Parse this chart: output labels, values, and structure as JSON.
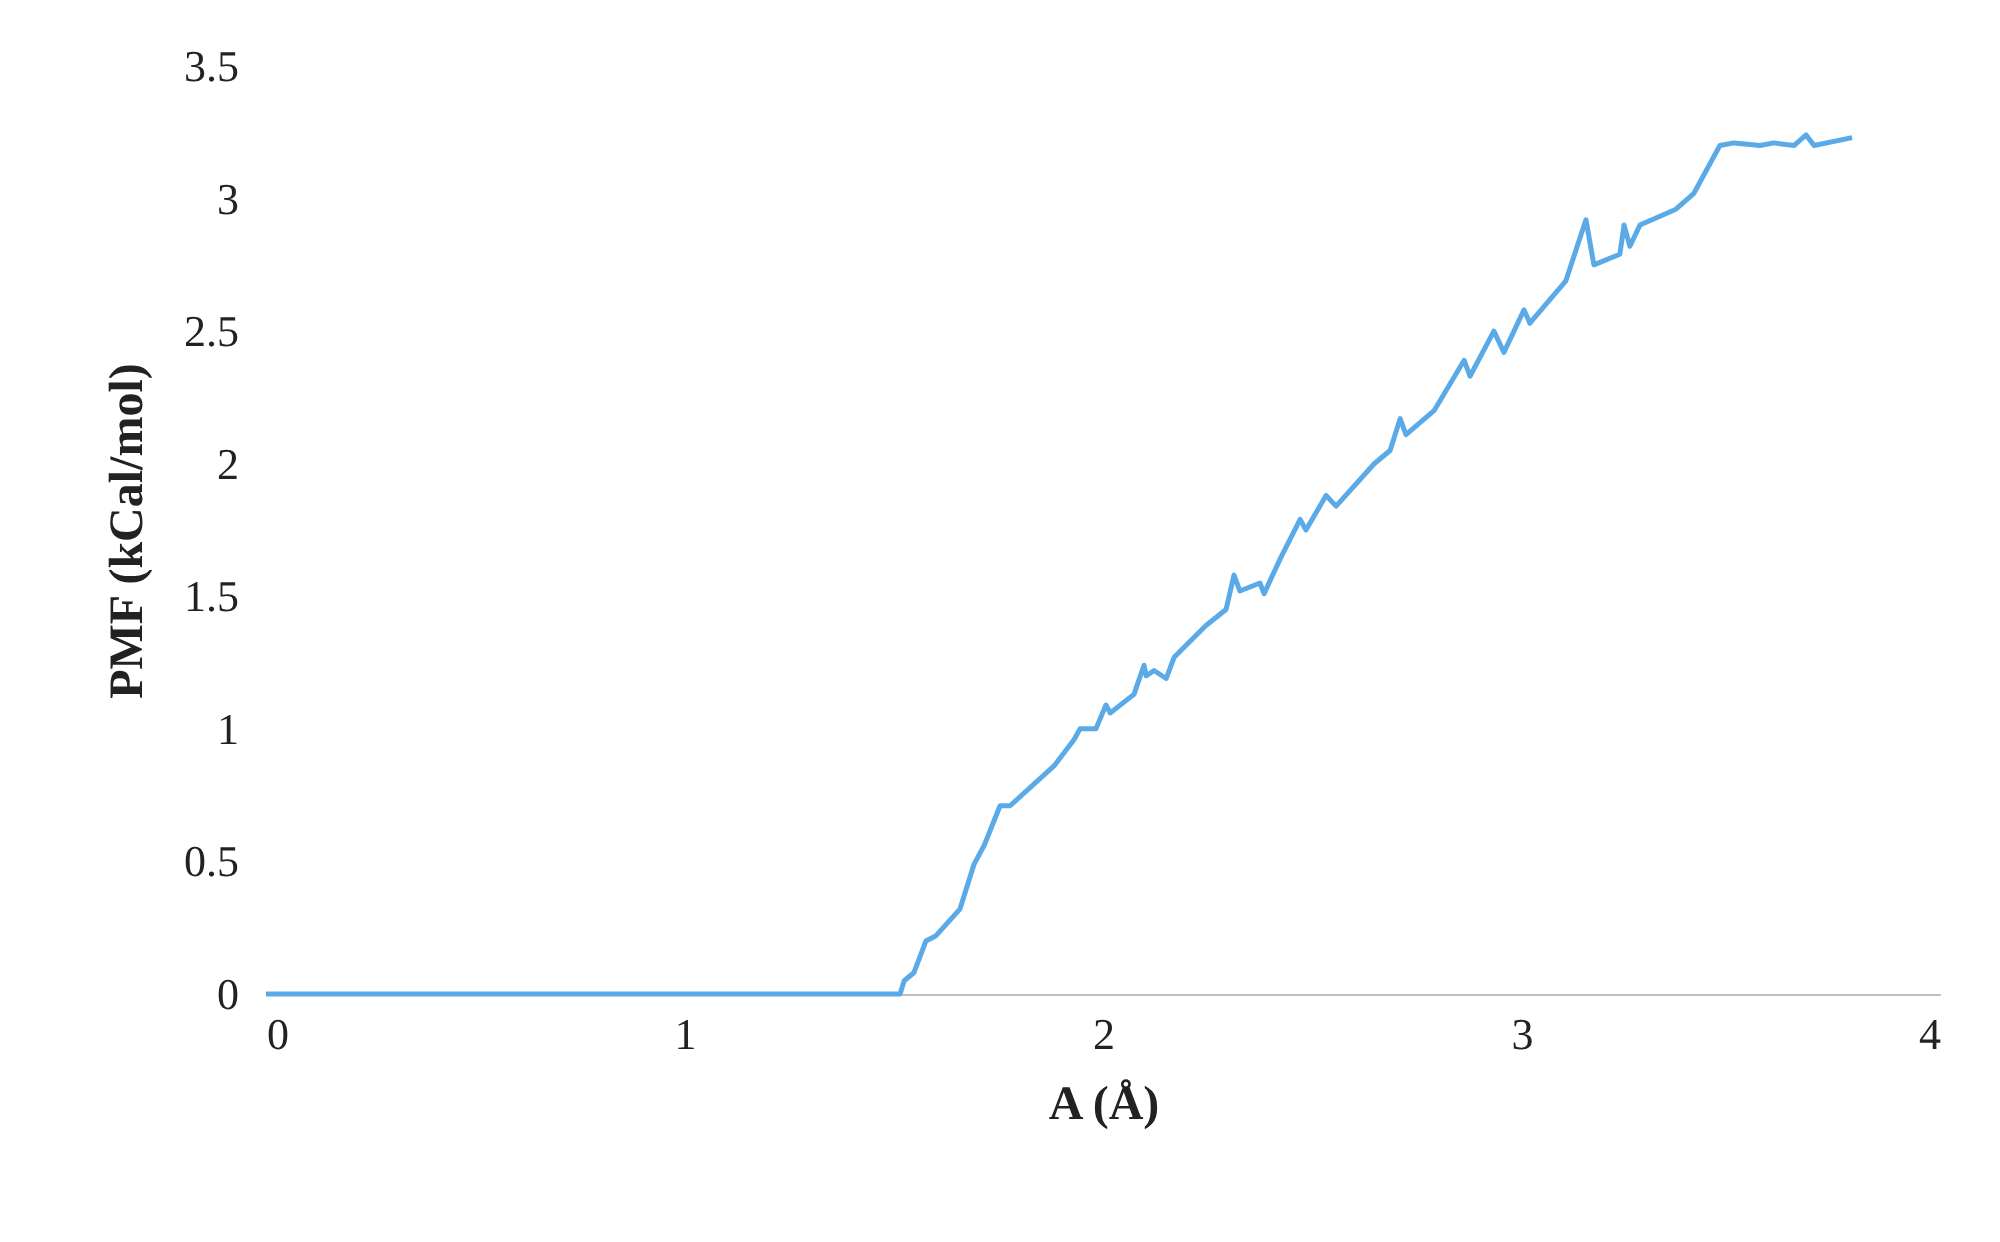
{
  "chart_data": {
    "type": "line",
    "xlabel": "A (Å)",
    "ylabel": "PMF (kCal/mol)",
    "xlim": [
      0,
      4
    ],
    "xticks": [
      0,
      1,
      2,
      3,
      4
    ],
    "ylim": [
      0,
      3.5
    ],
    "yticks": [
      0,
      0.5,
      1,
      1.5,
      2,
      2.5,
      3,
      3.5
    ],
    "grid": false,
    "legend": false,
    "marker": "none",
    "line_style": "solid",
    "series": [
      {
        "color": "#5aaae8",
        "x": [
          0,
          1.515,
          1.525,
          1.548,
          1.577,
          1.601,
          1.658,
          1.692,
          1.716,
          1.754,
          1.778,
          1.883,
          1.931,
          1.945,
          1.983,
          2.007,
          2.017,
          2.074,
          2.098,
          2.103,
          2.122,
          2.151,
          2.17,
          2.246,
          2.294,
          2.313,
          2.327,
          2.375,
          2.385,
          2.423,
          2.471,
          2.485,
          2.533,
          2.557,
          2.648,
          2.686,
          2.71,
          2.724,
          2.791,
          2.863,
          2.877,
          2.934,
          2.958,
          3.006,
          3.02,
          3.106,
          3.154,
          3.173,
          3.235,
          3.245,
          3.259,
          3.283,
          3.369,
          3.412,
          3.474,
          3.508,
          3.57,
          3.603,
          3.651,
          3.68,
          3.699,
          3.79
        ],
        "values": [
          0,
          0,
          0.05,
          0.08,
          0.2,
          0.22,
          0.32,
          0.49,
          0.56,
          0.71,
          0.71,
          0.86,
          0.96,
          1.0,
          1.0,
          1.09,
          1.06,
          1.13,
          1.24,
          1.2,
          1.22,
          1.19,
          1.27,
          1.39,
          1.45,
          1.58,
          1.52,
          1.55,
          1.51,
          1.64,
          1.79,
          1.75,
          1.88,
          1.84,
          2.0,
          2.05,
          2.17,
          2.11,
          2.2,
          2.39,
          2.33,
          2.5,
          2.42,
          2.58,
          2.53,
          2.69,
          2.92,
          2.75,
          2.79,
          2.9,
          2.82,
          2.9,
          2.96,
          3.02,
          3.2,
          3.21,
          3.2,
          3.21,
          3.2,
          3.24,
          3.2,
          3.23
        ]
      }
    ]
  }
}
